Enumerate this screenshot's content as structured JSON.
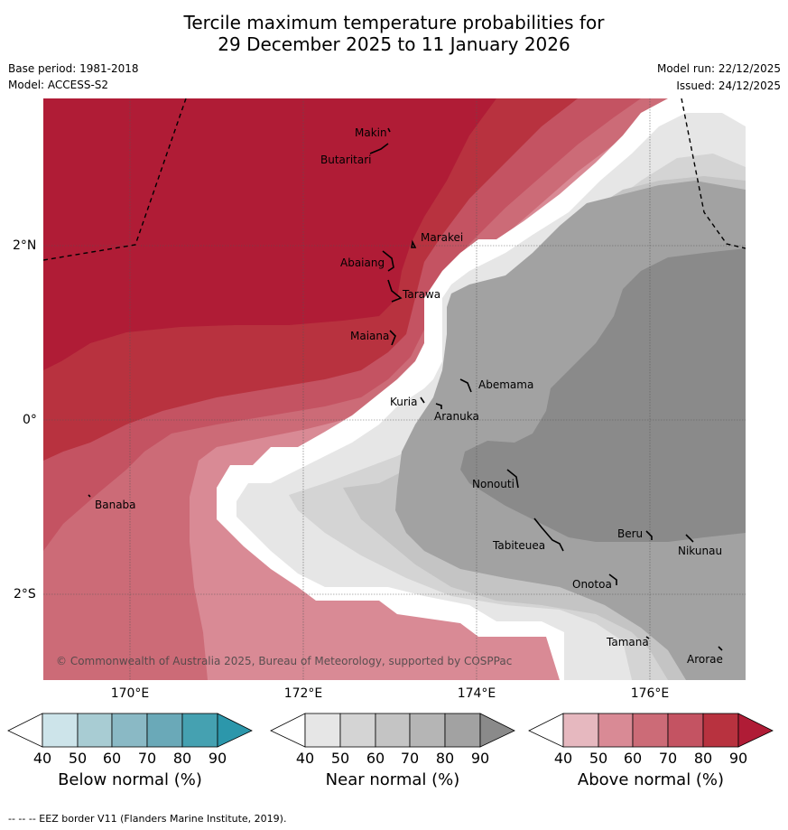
{
  "title": {
    "line1": "Tercile maximum temperature probabilities for",
    "line2": "29 December 2025 to 11 January 2026"
  },
  "meta": {
    "base_period": "Base period: 1981-2018",
    "model": "Model: ACCESS-S2",
    "model_run": "Model run: 22/12/2025",
    "issued": "Issued: 24/12/2025"
  },
  "axes": {
    "lat_labels": [
      "2°N",
      "0°",
      "2°S"
    ],
    "lon_labels": [
      "170°E",
      "172°E",
      "174°E",
      "176°E"
    ]
  },
  "places": [
    "Makin",
    "Butaritari",
    "Marakei",
    "Abaiang",
    "Tarawa",
    "Maiana",
    "Abemama",
    "Kuria",
    "Aranuka",
    "Nonouti",
    "Banaba",
    "Beru",
    "Tabiteuea",
    "Nikunau",
    "Onotoa",
    "Tamana",
    "Arorae"
  ],
  "copyright": "© Commonwealth of Australia 2025, Bureau of Meteorology, supported by COSPPac",
  "colorbars": [
    {
      "label": "Below normal (%)",
      "ticks": [
        "40",
        "50",
        "60",
        "70",
        "80",
        "90"
      ],
      "colors": [
        "#cde4ea",
        "#a8ccd3",
        "#8ab9c5",
        "#6aa9b8",
        "#45a1b1",
        "#2c97ab"
      ]
    },
    {
      "label": "Near normal (%)",
      "ticks": [
        "40",
        "50",
        "60",
        "70",
        "80",
        "90"
      ],
      "colors": [
        "#e6e6e6",
        "#d4d4d4",
        "#c4c4c4",
        "#b5b5b5",
        "#a2a2a2",
        "#8a8a8a"
      ]
    },
    {
      "label": "Above normal (%)",
      "ticks": [
        "40",
        "50",
        "60",
        "70",
        "80",
        "90"
      ],
      "colors": [
        "#e6b8bf",
        "#d98a95",
        "#cc6b77",
        "#c45362",
        "#b8323f",
        "#b01c36"
      ]
    }
  ],
  "footer": "--  --  -- EEZ border V11 (Flanders Marine Institute, 2019)."
}
